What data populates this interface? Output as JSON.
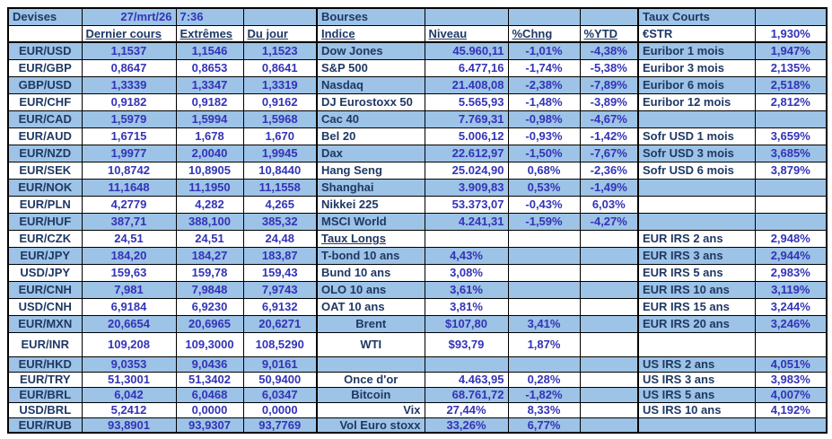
{
  "colors": {
    "row_stripe_blue": "#9DC3E6",
    "row_white": "#FFFFFF",
    "label_text": "#1F3864",
    "value_text": "#3333B8",
    "grid_line": "#000000"
  },
  "report": {
    "date": "27/mrt/26",
    "time": "7:36"
  },
  "grid": {
    "column_keys": [
      "currency-pair",
      "dernier-cours",
      "extremes",
      "du-jour",
      "indice",
      "niveau",
      "pct-chng",
      "pct-ytd",
      "taux-name",
      "taux-value"
    ],
    "rows": [
      {
        "cells": [
          [
            "Devises",
            "sec"
          ],
          [
            "27/mrt/26",
            "numr"
          ],
          [
            "7:36",
            "numl"
          ],
          [
            "",
            ""
          ],
          [
            "Bourses",
            "sec"
          ],
          [
            "",
            ""
          ],
          [
            "",
            ""
          ],
          [
            "",
            ""
          ],
          [
            "Taux Courts",
            "sec"
          ],
          [
            "",
            ""
          ]
        ]
      },
      {
        "cells": [
          [
            "",
            ""
          ],
          [
            "Dernier cours",
            "hdr"
          ],
          [
            "Extrêmes",
            "hdr"
          ],
          [
            "Du jour",
            "hdr"
          ],
          [
            "Indice",
            "hdr"
          ],
          [
            "Niveau",
            "hdr"
          ],
          [
            "%Chng",
            "hdr"
          ],
          [
            "%YTD",
            "hdr"
          ],
          [
            "€STR",
            "sec"
          ],
          [
            "1,930%",
            "numc"
          ]
        ]
      },
      {
        "cells": [
          [
            "EUR/USD",
            "pair"
          ],
          [
            "1,1537",
            "numc"
          ],
          [
            "1,1546",
            "numc"
          ],
          [
            "1,1523",
            "numc"
          ],
          [
            "Dow Jones",
            "name"
          ],
          [
            "45.960,11",
            "numr"
          ],
          [
            "-1,01%",
            "numc"
          ],
          [
            "-4,38%",
            "numc"
          ],
          [
            "Euribor 1 mois",
            "name"
          ],
          [
            "1,947%",
            "numc"
          ]
        ]
      },
      {
        "cells": [
          [
            "EUR/GBP",
            "pair"
          ],
          [
            "0,8647",
            "numc"
          ],
          [
            "0,8653",
            "numc"
          ],
          [
            "0,8641",
            "numc"
          ],
          [
            "S&P 500",
            "name"
          ],
          [
            "6.477,16",
            "numr"
          ],
          [
            "-1,74%",
            "numc"
          ],
          [
            "-5,38%",
            "numc"
          ],
          [
            "Euribor 3 mois",
            "name"
          ],
          [
            "2,135%",
            "numc"
          ]
        ]
      },
      {
        "cells": [
          [
            "GBP/USD",
            "pair"
          ],
          [
            "1,3339",
            "numc"
          ],
          [
            "1,3347",
            "numc"
          ],
          [
            "1,3319",
            "numc"
          ],
          [
            "Nasdaq",
            "name"
          ],
          [
            "21.408,08",
            "numr"
          ],
          [
            "-2,38%",
            "numc"
          ],
          [
            "-7,89%",
            "numc"
          ],
          [
            "Euribor 6 mois",
            "name"
          ],
          [
            "2,518%",
            "numc"
          ]
        ]
      },
      {
        "cells": [
          [
            "EUR/CHF",
            "pair"
          ],
          [
            "0,9182",
            "numc"
          ],
          [
            "0,9182",
            "numc"
          ],
          [
            "0,9162",
            "numc"
          ],
          [
            "DJ Eurostoxx 50",
            "name"
          ],
          [
            "5.565,93",
            "numr"
          ],
          [
            "-1,48%",
            "numc"
          ],
          [
            "-3,89%",
            "numc"
          ],
          [
            "Euribor 12 mois",
            "name"
          ],
          [
            "2,812%",
            "numc"
          ]
        ]
      },
      {
        "cells": [
          [
            "EUR/CAD",
            "pair"
          ],
          [
            "1,5979",
            "numc"
          ],
          [
            "1,5994",
            "numc"
          ],
          [
            "1,5968",
            "numc"
          ],
          [
            "Cac 40",
            "name"
          ],
          [
            "7.769,31",
            "numr"
          ],
          [
            "-0,98%",
            "numc"
          ],
          [
            "-4,67%",
            "numc"
          ],
          [
            "",
            ""
          ],
          [
            "",
            ""
          ]
        ]
      },
      {
        "cells": [
          [
            "EUR/AUD",
            "pair"
          ],
          [
            "1,6715",
            "numc"
          ],
          [
            "1,678",
            "numc"
          ],
          [
            "1,670",
            "numc"
          ],
          [
            "Bel 20",
            "name"
          ],
          [
            "5.006,12",
            "numr"
          ],
          [
            "-0,93%",
            "numc"
          ],
          [
            "-1,42%",
            "numc"
          ],
          [
            "Sofr USD 1 mois",
            "name"
          ],
          [
            "3,659%",
            "numc"
          ]
        ]
      },
      {
        "cells": [
          [
            "EUR/NZD",
            "pair"
          ],
          [
            "1,9977",
            "numc"
          ],
          [
            "2,0040",
            "numc"
          ],
          [
            "1,9945",
            "numc"
          ],
          [
            "Dax",
            "name"
          ],
          [
            "22.612,97",
            "numr"
          ],
          [
            "-1,50%",
            "numc"
          ],
          [
            "-7,67%",
            "numc"
          ],
          [
            "Sofr USD 3 mois",
            "name"
          ],
          [
            "3,685%",
            "numc"
          ]
        ]
      },
      {
        "cells": [
          [
            "EUR/SEK",
            "pair"
          ],
          [
            "10,8742",
            "numc"
          ],
          [
            "10,8905",
            "numc"
          ],
          [
            "10,8440",
            "numc"
          ],
          [
            "Hang Seng",
            "name"
          ],
          [
            "25.024,90",
            "numr"
          ],
          [
            "0,68%",
            "numc"
          ],
          [
            "-2,36%",
            "numc"
          ],
          [
            "Sofr USD 6 mois",
            "name"
          ],
          [
            "3,879%",
            "numc"
          ]
        ]
      },
      {
        "cells": [
          [
            "EUR/NOK",
            "pair"
          ],
          [
            "11,1648",
            "numc"
          ],
          [
            "11,1950",
            "numc"
          ],
          [
            "11,1558",
            "numc"
          ],
          [
            "Shanghai",
            "name"
          ],
          [
            "3.909,83",
            "numr"
          ],
          [
            "0,53%",
            "numc"
          ],
          [
            "-1,49%",
            "numc"
          ],
          [
            "",
            ""
          ],
          [
            "",
            ""
          ]
        ]
      },
      {
        "cells": [
          [
            "EUR/PLN",
            "pair"
          ],
          [
            "4,2779",
            "numc"
          ],
          [
            "4,282",
            "numc"
          ],
          [
            "4,265",
            "numc"
          ],
          [
            "Nikkei 225",
            "name"
          ],
          [
            "53.373,07",
            "numr"
          ],
          [
            "-0,43%",
            "numc"
          ],
          [
            "6,03%",
            "numc"
          ],
          [
            "",
            ""
          ],
          [
            "",
            ""
          ]
        ]
      },
      {
        "cells": [
          [
            "EUR/HUF",
            "pair"
          ],
          [
            "387,71",
            "numc"
          ],
          [
            "388,100",
            "numc"
          ],
          [
            "385,32",
            "numc"
          ],
          [
            "MSCI World",
            "name"
          ],
          [
            "4.241,31",
            "numr"
          ],
          [
            "-1,59%",
            "numc"
          ],
          [
            "-4,27%",
            "numc"
          ],
          [
            "",
            ""
          ],
          [
            "",
            ""
          ]
        ]
      },
      {
        "cells": [
          [
            "EUR/CZK",
            "pair"
          ],
          [
            "24,51",
            "numc"
          ],
          [
            "24,51",
            "numc"
          ],
          [
            "24,48",
            "numc"
          ],
          [
            "Taux Longs",
            "hdr"
          ],
          [
            "",
            ""
          ],
          [
            "",
            ""
          ],
          [
            "",
            ""
          ],
          [
            "EUR IRS 2 ans",
            "name"
          ],
          [
            "2,948%",
            "numc"
          ]
        ]
      },
      {
        "cells": [
          [
            "EUR/JPY",
            "pair"
          ],
          [
            "184,20",
            "numc"
          ],
          [
            "184,27",
            "numc"
          ],
          [
            "183,87",
            "numc"
          ],
          [
            "T-bond 10 ans",
            "name"
          ],
          [
            "4,43%",
            "numc"
          ],
          [
            "",
            ""
          ],
          [
            "",
            ""
          ],
          [
            "EUR IRS 3 ans",
            "name"
          ],
          [
            "2,944%",
            "numc"
          ]
        ]
      },
      {
        "cells": [
          [
            "USD/JPY",
            "pair"
          ],
          [
            "159,63",
            "numc"
          ],
          [
            "159,78",
            "numc"
          ],
          [
            "159,43",
            "numc"
          ],
          [
            "Bund 10 ans",
            "name"
          ],
          [
            "3,08%",
            "numc"
          ],
          [
            "",
            ""
          ],
          [
            "",
            ""
          ],
          [
            "EUR IRS 5 ans",
            "name"
          ],
          [
            "2,983%",
            "numc"
          ]
        ]
      },
      {
        "cells": [
          [
            "EUR/CNH",
            "pair"
          ],
          [
            "7,981",
            "numc"
          ],
          [
            "7,9848",
            "numc"
          ],
          [
            "7,9743",
            "numc"
          ],
          [
            "OLO 10 ans",
            "name"
          ],
          [
            "3,61%",
            "numc"
          ],
          [
            "",
            ""
          ],
          [
            "",
            ""
          ],
          [
            "EUR IRS 10 ans",
            "name"
          ],
          [
            "3,119%",
            "numc"
          ]
        ]
      },
      {
        "cells": [
          [
            "USD/CNH",
            "pair"
          ],
          [
            "6,9184",
            "numc"
          ],
          [
            "6,9230",
            "numc"
          ],
          [
            "6,9132",
            "numc"
          ],
          [
            "OAT 10 ans",
            "name"
          ],
          [
            "3,81%",
            "numc"
          ],
          [
            "",
            ""
          ],
          [
            "",
            ""
          ],
          [
            "EUR IRS 15 ans",
            "name"
          ],
          [
            "3,244%",
            "numc"
          ]
        ]
      },
      {
        "cells": [
          [
            "EUR/MXN",
            "pair"
          ],
          [
            "20,6654",
            "numc"
          ],
          [
            "20,6965",
            "numc"
          ],
          [
            "20,6271",
            "numc"
          ],
          [
            "Brent",
            "namec"
          ],
          [
            "$107,80",
            "numc"
          ],
          [
            "3,41%",
            "numc"
          ],
          [
            "",
            ""
          ],
          [
            "EUR IRS 20 ans",
            "name"
          ],
          [
            "3,246%",
            "numc"
          ]
        ]
      },
      {
        "cells": [
          [
            "EUR/INR",
            "pair"
          ],
          [
            "109,208",
            "numc"
          ],
          [
            "109,3000",
            "numc"
          ],
          [
            "108,5290",
            "numc"
          ],
          [
            "WTI",
            "namec"
          ],
          [
            "$93,79",
            "numc"
          ],
          [
            "1,87%",
            "numc"
          ],
          [
            "",
            ""
          ],
          [
            "",
            ""
          ],
          [
            "",
            ""
          ]
        ]
      },
      {
        "cells": [
          [
            "EUR/HKD",
            "pair"
          ],
          [
            "9,0353",
            "numc"
          ],
          [
            "9,0436",
            "numc"
          ],
          [
            "9,0161",
            "numc"
          ],
          [
            "",
            ""
          ],
          [
            "",
            ""
          ],
          [
            "",
            ""
          ],
          [
            "",
            ""
          ],
          [
            "US IRS 2 ans",
            "name"
          ],
          [
            "4,051%",
            "numc"
          ]
        ]
      },
      {
        "cells": [
          [
            "EUR/TRY",
            "pair"
          ],
          [
            "51,3001",
            "numc"
          ],
          [
            "51,3402",
            "numc"
          ],
          [
            "50,9400",
            "numc"
          ],
          [
            "Once d'or",
            "namec"
          ],
          [
            "4.463,95",
            "numr"
          ],
          [
            "0,28%",
            "numc"
          ],
          [
            "",
            ""
          ],
          [
            "US IRS 3 ans",
            "name"
          ],
          [
            "3,983%",
            "numc"
          ]
        ]
      },
      {
        "cells": [
          [
            "EUR/BRL",
            "pair"
          ],
          [
            "6,042",
            "numc"
          ],
          [
            "6,0468",
            "numc"
          ],
          [
            "6,0347",
            "numc"
          ],
          [
            "Bitcoin",
            "namec"
          ],
          [
            "68.761,72",
            "numr"
          ],
          [
            "-1,82%",
            "numc"
          ],
          [
            "",
            ""
          ],
          [
            "US IRS 5 ans",
            "name"
          ],
          [
            "4,007%",
            "numc"
          ]
        ]
      },
      {
        "cells": [
          [
            "USD/BRL",
            "pair"
          ],
          [
            "5,2412",
            "numc"
          ],
          [
            "0,0000",
            "numc"
          ],
          [
            "0,0000",
            "numc"
          ],
          [
            "Vix",
            "namer"
          ],
          [
            "27,44%",
            "numc"
          ],
          [
            "8,33%",
            "numc"
          ],
          [
            "",
            ""
          ],
          [
            "US IRS 10 ans",
            "name"
          ],
          [
            "4,192%",
            "numc"
          ]
        ]
      },
      {
        "cells": [
          [
            "EUR/RUB",
            "pair"
          ],
          [
            "93,8901",
            "numc"
          ],
          [
            "93,9307",
            "numc"
          ],
          [
            "93,7769",
            "numc"
          ],
          [
            "Vol Euro stoxx",
            "namer"
          ],
          [
            "33,26%",
            "numc"
          ],
          [
            "6,77%",
            "numc"
          ],
          [
            "",
            ""
          ],
          [
            "",
            ""
          ],
          [
            "",
            ""
          ]
        ]
      }
    ]
  }
}
